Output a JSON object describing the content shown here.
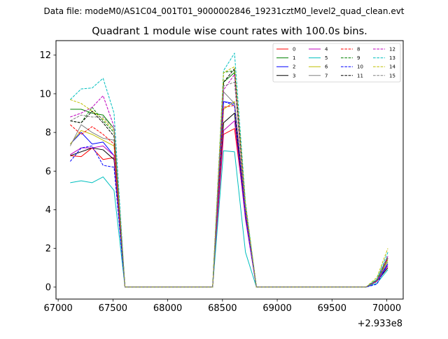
{
  "header": {
    "suptitle": "Data file: modeM0/AS1C04_001T01_9000002846_19231cztM0_level2_quad_clean.evt"
  },
  "chart_data": {
    "type": "line",
    "title": "Quadrant 1 module wise count rates with 100.0s bins.",
    "xlabel": "",
    "ylabel": "",
    "x_offset_label": "+2.933e8",
    "xlim": [
      66980,
      70150
    ],
    "ylim": [
      -0.62,
      12.75
    ],
    "xticks": [
      67000,
      67500,
      68000,
      68500,
      69000,
      69500,
      70000
    ],
    "xtick_labels": [
      "67000",
      "67500",
      "68000",
      "68500",
      "69000",
      "69500",
      "70000"
    ],
    "yticks": [
      0,
      2,
      4,
      6,
      8,
      10,
      12
    ],
    "ytick_labels": [
      "0",
      "2",
      "4",
      "6",
      "8",
      "10",
      "12"
    ],
    "grid": false,
    "legend_position": "top-right",
    "x": [
      67110,
      67210,
      67310,
      67410,
      67510,
      67610,
      67710,
      67810,
      67910,
      68010,
      68110,
      68210,
      68310,
      68410,
      68510,
      68610,
      68710,
      68810,
      68910,
      69010,
      69110,
      69210,
      69310,
      69410,
      69510,
      69610,
      69710,
      69810,
      69910,
      70010
    ],
    "series": [
      {
        "name": "0",
        "color": "#ff0000",
        "dash": false,
        "values": [
          6.8,
          6.75,
          7.2,
          6.6,
          6.7,
          0,
          0,
          0,
          0,
          0,
          0,
          0,
          0,
          0,
          7.9,
          8.2,
          3.8,
          0,
          0,
          0,
          0,
          0,
          0,
          0,
          0,
          0,
          0,
          0,
          0.3,
          1.1
        ]
      },
      {
        "name": "1",
        "color": "#008000",
        "dash": false,
        "values": [
          9.2,
          9.2,
          9.0,
          8.9,
          8.2,
          0,
          0,
          0,
          0,
          0,
          0,
          0,
          0,
          0,
          10.6,
          11.1,
          4.1,
          0,
          0,
          0,
          0,
          0,
          0,
          0,
          0,
          0,
          0,
          0,
          0.35,
          1.5
        ]
      },
      {
        "name": "2",
        "color": "#0000ff",
        "dash": false,
        "values": [
          7.4,
          8.0,
          7.4,
          7.5,
          6.8,
          0,
          0,
          0,
          0,
          0,
          0,
          0,
          0,
          0,
          9.6,
          9.5,
          3.9,
          0,
          0,
          0,
          0,
          0,
          0,
          0,
          0,
          0,
          0,
          0,
          0.3,
          1.2
        ]
      },
      {
        "name": "3",
        "color": "#000000",
        "dash": false,
        "values": [
          6.8,
          7.0,
          7.2,
          7.1,
          6.6,
          0,
          0,
          0,
          0,
          0,
          0,
          0,
          0,
          0,
          8.5,
          9.0,
          3.6,
          0,
          0,
          0,
          0,
          0,
          0,
          0,
          0,
          0,
          0,
          0,
          0.3,
          1.0
        ]
      },
      {
        "name": "4",
        "color": "#bf00bf",
        "dash": false,
        "values": [
          6.85,
          7.2,
          7.2,
          7.3,
          6.8,
          0,
          0,
          0,
          0,
          0,
          0,
          0,
          0,
          0,
          8.1,
          8.6,
          3.5,
          0,
          0,
          0,
          0,
          0,
          0,
          0,
          0,
          0,
          0,
          0,
          0.3,
          1.1
        ]
      },
      {
        "name": "5",
        "color": "#00bfbf",
        "dash": false,
        "values": [
          5.4,
          5.5,
          5.4,
          5.7,
          5.0,
          0,
          0,
          0,
          0,
          0,
          0,
          0,
          0,
          0,
          7.05,
          7.0,
          1.8,
          0,
          0,
          0,
          0,
          0,
          0,
          0,
          0,
          0,
          0,
          0,
          0.2,
          0.9
        ]
      },
      {
        "name": "6",
        "color": "#bfbf00",
        "dash": false,
        "values": [
          7.4,
          8.1,
          7.9,
          7.6,
          7.3,
          0,
          0,
          0,
          0,
          0,
          0,
          0,
          0,
          0,
          9.2,
          9.6,
          3.9,
          0,
          0,
          0,
          0,
          0,
          0,
          0,
          0,
          0,
          0,
          0,
          0.35,
          1.4
        ]
      },
      {
        "name": "7",
        "color": "#808080",
        "dash": false,
        "values": [
          7.3,
          8.4,
          8.0,
          7.7,
          7.6,
          0,
          0,
          0,
          0,
          0,
          0,
          0,
          0,
          0,
          10.1,
          9.5,
          4.0,
          0,
          0,
          0,
          0,
          0,
          0,
          0,
          0,
          0,
          0,
          0,
          0.3,
          1.3
        ]
      },
      {
        "name": "8",
        "color": "#ff0000",
        "dash": true,
        "values": [
          8.4,
          7.9,
          8.3,
          7.9,
          7.4,
          0,
          0,
          0,
          0,
          0,
          0,
          0,
          0,
          0,
          9.3,
          9.4,
          3.9,
          0,
          0,
          0,
          0,
          0,
          0,
          0,
          0,
          0,
          0,
          0,
          0.35,
          1.5
        ]
      },
      {
        "name": "9",
        "color": "#008000",
        "dash": true,
        "values": [
          8.6,
          8.5,
          9.3,
          8.6,
          8.0,
          0,
          0,
          0,
          0,
          0,
          0,
          0,
          0,
          0,
          11.1,
          11.2,
          4.2,
          0,
          0,
          0,
          0,
          0,
          0,
          0,
          0,
          0,
          0,
          0,
          0.4,
          1.6
        ]
      },
      {
        "name": "10",
        "color": "#0000ff",
        "dash": true,
        "values": [
          6.5,
          7.2,
          7.3,
          6.3,
          6.2,
          0,
          0,
          0,
          0,
          0,
          0,
          0,
          0,
          0,
          9.6,
          9.4,
          3.7,
          0,
          0,
          0,
          0,
          0,
          0,
          0,
          0,
          0,
          0,
          0,
          0.15,
          1.2
        ]
      },
      {
        "name": "11",
        "color": "#000000",
        "dash": true,
        "values": [
          8.6,
          8.5,
          9.1,
          8.5,
          7.8,
          0,
          0,
          0,
          0,
          0,
          0,
          0,
          0,
          0,
          10.6,
          11.3,
          4.1,
          0,
          0,
          0,
          0,
          0,
          0,
          0,
          0,
          0,
          0,
          0,
          0.3,
          1.5
        ]
      },
      {
        "name": "12",
        "color": "#bf00bf",
        "dash": true,
        "values": [
          8.8,
          9.0,
          9.3,
          9.9,
          8.3,
          0,
          0,
          0,
          0,
          0,
          0,
          0,
          0,
          0,
          10.2,
          11.0,
          4.1,
          0,
          0,
          0,
          0,
          0,
          0,
          0,
          0,
          0,
          0,
          0,
          0.3,
          1.6
        ]
      },
      {
        "name": "13",
        "color": "#00bfbf",
        "dash": true,
        "values": [
          9.7,
          10.25,
          10.3,
          10.8,
          9.0,
          0,
          0,
          0,
          0,
          0,
          0,
          0,
          0,
          0,
          11.2,
          12.1,
          4.4,
          0,
          0,
          0,
          0,
          0,
          0,
          0,
          0,
          0,
          0,
          0,
          0.4,
          1.8
        ]
      },
      {
        "name": "14",
        "color": "#bfbf00",
        "dash": true,
        "values": [
          9.7,
          9.5,
          9.1,
          8.7,
          8.1,
          0,
          0,
          0,
          0,
          0,
          0,
          0,
          0,
          0,
          11.1,
          11.4,
          4.3,
          0,
          0,
          0,
          0,
          0,
          0,
          0,
          0,
          0,
          0,
          0,
          0.5,
          2.0
        ]
      },
      {
        "name": "15",
        "color": "#808080",
        "dash": true,
        "values": [
          8.6,
          8.9,
          8.8,
          8.8,
          8.2,
          0,
          0,
          0,
          0,
          0,
          0,
          0,
          0,
          0,
          10.4,
          10.6,
          4.0,
          0,
          0,
          0,
          0,
          0,
          0,
          0,
          0,
          0,
          0,
          0,
          0.35,
          1.5
        ]
      }
    ]
  }
}
